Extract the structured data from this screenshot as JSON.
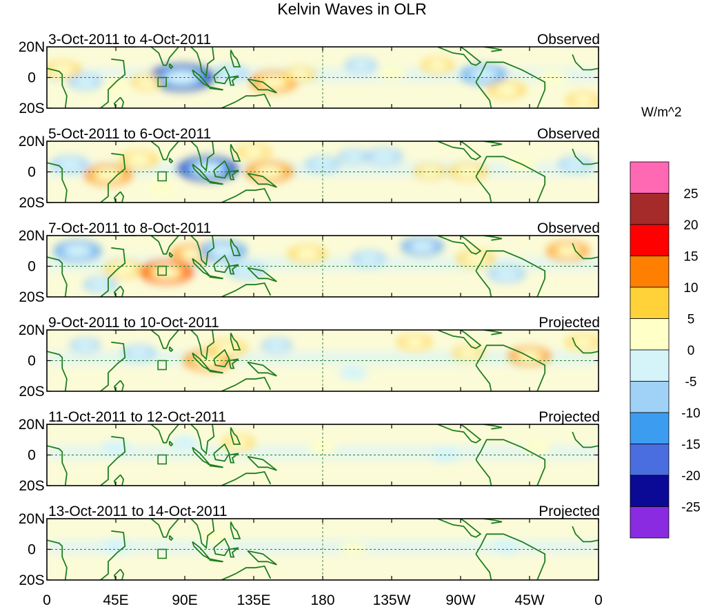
{
  "title": "Kelvin Waves in OLR",
  "units": "W/m^2",
  "lat_labels": [
    "20N",
    "0",
    "20S"
  ],
  "lon_labels": [
    "0",
    "45E",
    "90E",
    "135E",
    "180",
    "135W",
    "90W",
    "45W",
    "0"
  ],
  "panels": [
    {
      "date_range": "3-Oct-2011 to 4-Oct-2011",
      "status": "Observed"
    },
    {
      "date_range": "5-Oct-2011 to 6-Oct-2011",
      "status": "Observed"
    },
    {
      "date_range": "7-Oct-2011 to 8-Oct-2011",
      "status": "Observed"
    },
    {
      "date_range": "9-Oct-2011 to 10-Oct-2011",
      "status": "Projected"
    },
    {
      "date_range": "11-Oct-2011 to 12-Oct-2011",
      "status": "Projected"
    },
    {
      "date_range": "13-Oct-2011 to 14-Oct-2011",
      "status": "Projected"
    }
  ],
  "colorbar": {
    "labels": [
      "25",
      "20",
      "15",
      "10",
      "5",
      "0",
      "-5",
      "-10",
      "-15",
      "-20",
      "-25"
    ],
    "colors": [
      "#ff69b4",
      "#a52a2a",
      "#ff0000",
      "#ff7f00",
      "#ffd23a",
      "#ffffc8",
      "#d4f4fa",
      "#a0d2f8",
      "#3c9cf0",
      "#4a6ee0",
      "#0a0a96",
      "#8a2be2"
    ]
  },
  "palette": {
    "land_outline": "#1e7d1e",
    "border": "#000000"
  },
  "anomalies": [
    [
      {
        "lon": 10,
        "lat": 5,
        "v": 10
      },
      {
        "lon": 25,
        "lat": -3,
        "v": -8
      },
      {
        "lon": 45,
        "lat": -5,
        "v": 5
      },
      {
        "lon": 88,
        "lat": 0,
        "v": -25
      },
      {
        "lon": 65,
        "lat": -3,
        "v": 6
      },
      {
        "lon": 120,
        "lat": 3,
        "v": -8
      },
      {
        "lon": 148,
        "lat": -3,
        "v": 15
      },
      {
        "lon": 165,
        "lat": 2,
        "v": 6
      },
      {
        "lon": 205,
        "lat": 8,
        "v": -7
      },
      {
        "lon": 225,
        "lat": 3,
        "v": 5
      },
      {
        "lon": 255,
        "lat": 8,
        "v": 7
      },
      {
        "lon": 285,
        "lat": 2,
        "v": -14
      },
      {
        "lon": 300,
        "lat": -8,
        "v": 10
      },
      {
        "lon": 330,
        "lat": 0,
        "v": 5
      },
      {
        "lon": 350,
        "lat": -15,
        "v": 8
      }
    ],
    [
      {
        "lon": 15,
        "lat": 5,
        "v": -10
      },
      {
        "lon": 40,
        "lat": -2,
        "v": 15
      },
      {
        "lon": 60,
        "lat": 8,
        "v": 10
      },
      {
        "lon": 75,
        "lat": -10,
        "v": 5
      },
      {
        "lon": 105,
        "lat": 2,
        "v": -22
      },
      {
        "lon": 145,
        "lat": 0,
        "v": 15
      },
      {
        "lon": 135,
        "lat": 13,
        "v": 8
      },
      {
        "lon": 180,
        "lat": 5,
        "v": -8
      },
      {
        "lon": 200,
        "lat": 10,
        "v": -6
      },
      {
        "lon": 220,
        "lat": 10,
        "v": -10
      },
      {
        "lon": 250,
        "lat": 0,
        "v": 6
      },
      {
        "lon": 275,
        "lat": 0,
        "v": 10
      },
      {
        "lon": 310,
        "lat": 5,
        "v": 5
      },
      {
        "lon": 345,
        "lat": 5,
        "v": -8
      }
    ],
    [
      {
        "lon": 20,
        "lat": 10,
        "v": -15
      },
      {
        "lon": 50,
        "lat": -2,
        "v": 10
      },
      {
        "lon": 78,
        "lat": -4,
        "v": 18
      },
      {
        "lon": 95,
        "lat": 8,
        "v": 12
      },
      {
        "lon": 115,
        "lat": 10,
        "v": -15
      },
      {
        "lon": 130,
        "lat": -3,
        "v": -10
      },
      {
        "lon": 170,
        "lat": 8,
        "v": 10
      },
      {
        "lon": 210,
        "lat": 5,
        "v": -8
      },
      {
        "lon": 245,
        "lat": 13,
        "v": -12
      },
      {
        "lon": 280,
        "lat": 5,
        "v": 10
      },
      {
        "lon": 300,
        "lat": -5,
        "v": -10
      },
      {
        "lon": 340,
        "lat": 10,
        "v": 12
      },
      {
        "lon": 35,
        "lat": -12,
        "v": -8
      }
    ],
    [
      {
        "lon": 25,
        "lat": 10,
        "v": -6
      },
      {
        "lon": 60,
        "lat": 5,
        "v": -8
      },
      {
        "lon": 105,
        "lat": 0,
        "v": 15
      },
      {
        "lon": 118,
        "lat": 8,
        "v": 10
      },
      {
        "lon": 150,
        "lat": 10,
        "v": -6
      },
      {
        "lon": 240,
        "lat": 12,
        "v": 8
      },
      {
        "lon": 275,
        "lat": 5,
        "v": 6
      },
      {
        "lon": 315,
        "lat": 3,
        "v": 12
      },
      {
        "lon": 350,
        "lat": 12,
        "v": 8
      },
      {
        "lon": 200,
        "lat": -8,
        "v": -5
      }
    ],
    [
      {
        "lon": 45,
        "lat": 5,
        "v": -5
      },
      {
        "lon": 90,
        "lat": 8,
        "v": -5
      },
      {
        "lon": 125,
        "lat": 8,
        "v": 7
      },
      {
        "lon": 180,
        "lat": 5,
        "v": 4
      },
      {
        "lon": 260,
        "lat": 0,
        "v": -4
      },
      {
        "lon": 320,
        "lat": 5,
        "v": 4
      }
    ],
    [
      {
        "lon": 45,
        "lat": 2,
        "v": -4
      },
      {
        "lon": 110,
        "lat": 8,
        "v": 4
      },
      {
        "lon": 200,
        "lat": 0,
        "v": 3
      },
      {
        "lon": 300,
        "lat": 2,
        "v": -3
      }
    ]
  ]
}
